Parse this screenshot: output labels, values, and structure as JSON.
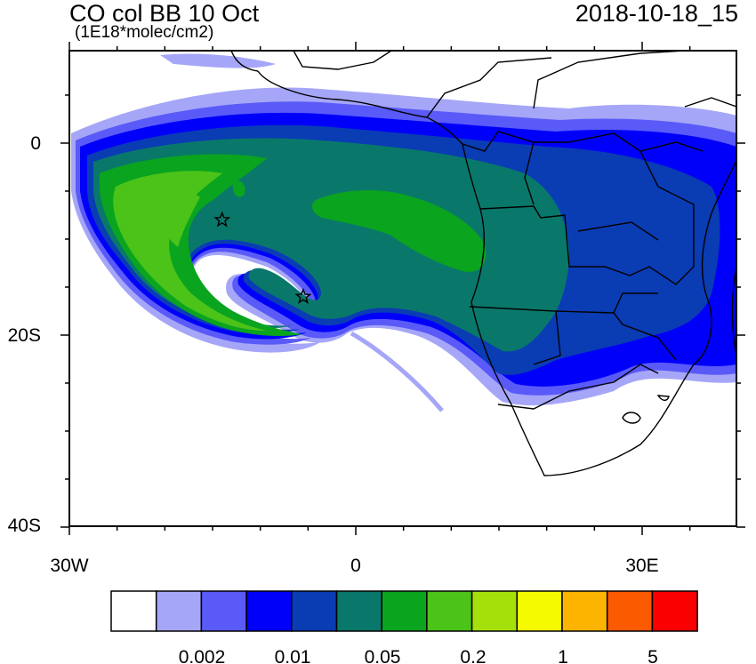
{
  "header": {
    "title": "CO col BB 10 Oct",
    "units": "(1E18*molec/cm2)",
    "datetime": "2018-10-18_15"
  },
  "axes": {
    "lat_labels": [
      "0",
      "20S",
      "40S"
    ],
    "lon_labels": [
      "30W",
      "0",
      "30E"
    ]
  },
  "colorbar": {
    "colors": [
      "#ffffff",
      "#a6a6f8",
      "#5a5af8",
      "#0000fa",
      "#0a3cb4",
      "#09786a",
      "#0aa41f",
      "#4bc319",
      "#a6e00a",
      "#f5fa00",
      "#fcb400",
      "#fc5a00",
      "#fa0000"
    ],
    "labels": [
      "0.002",
      "0.01",
      "0.05",
      "0.2",
      "1",
      "5"
    ]
  },
  "markers": [
    {
      "name": "star-marker-1",
      "lon": -14,
      "lat": -8
    },
    {
      "name": "star-marker-2",
      "lon": -5.5,
      "lat": -16
    }
  ]
}
